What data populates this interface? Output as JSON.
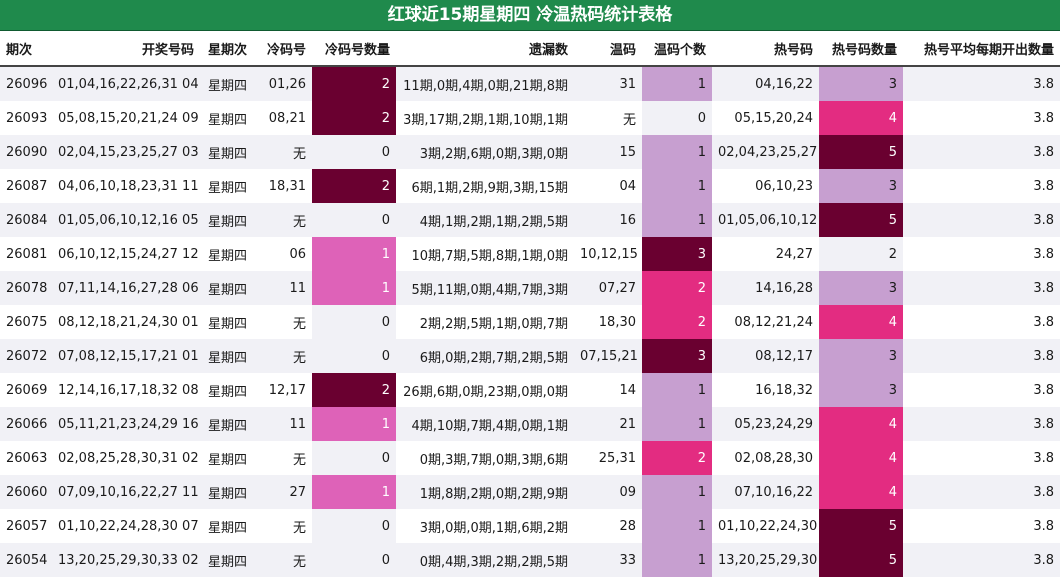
{
  "title": "红球近15期星期四 冷温热码统计表格",
  "headers": [
    "期次",
    "开奖号码",
    "星期次",
    "冷码号",
    "冷码号数量",
    "遗漏数",
    "温码",
    "温码个数",
    "热号码",
    "热号码数量",
    "热号平均每期开出数量"
  ],
  "rows": [
    {
      "period": "26096",
      "numbers": "01,04,16,22,26,31 04",
      "weekday": "星期四",
      "cold": "01,26",
      "cold_count": "2",
      "missing": "11期,0期,4期,0期,21期,8期",
      "warm": "31",
      "warm_count": "1",
      "hot": "04,16,22",
      "hot_count": "3",
      "hot_avg": "3.8"
    },
    {
      "period": "26093",
      "numbers": "05,08,15,20,21,24 09",
      "weekday": "星期四",
      "cold": "08,21",
      "cold_count": "2",
      "missing": "3期,17期,2期,1期,10期,1期",
      "warm": "无",
      "warm_count": "0",
      "hot": "05,15,20,24",
      "hot_count": "4",
      "hot_avg": "3.8"
    },
    {
      "period": "26090",
      "numbers": "02,04,15,23,25,27 03",
      "weekday": "星期四",
      "cold": "无",
      "cold_count": "0",
      "missing": "3期,2期,6期,0期,3期,0期",
      "warm": "15",
      "warm_count": "1",
      "hot": "02,04,23,25,27",
      "hot_count": "5",
      "hot_avg": "3.8"
    },
    {
      "period": "26087",
      "numbers": "04,06,10,18,23,31 11",
      "weekday": "星期四",
      "cold": "18,31",
      "cold_count": "2",
      "missing": "6期,1期,2期,9期,3期,15期",
      "warm": "04",
      "warm_count": "1",
      "hot": "06,10,23",
      "hot_count": "3",
      "hot_avg": "3.8"
    },
    {
      "period": "26084",
      "numbers": "01,05,06,10,12,16 05",
      "weekday": "星期四",
      "cold": "无",
      "cold_count": "0",
      "missing": "4期,1期,2期,1期,2期,5期",
      "warm": "16",
      "warm_count": "1",
      "hot": "01,05,06,10,12",
      "hot_count": "5",
      "hot_avg": "3.8"
    },
    {
      "period": "26081",
      "numbers": "06,10,12,15,24,27 12",
      "weekday": "星期四",
      "cold": "06",
      "cold_count": "1",
      "missing": "10期,7期,5期,8期,1期,0期",
      "warm": "10,12,15",
      "warm_count": "3",
      "hot": "24,27",
      "hot_count": "2",
      "hot_avg": "3.8"
    },
    {
      "period": "26078",
      "numbers": "07,11,14,16,27,28 06",
      "weekday": "星期四",
      "cold": "11",
      "cold_count": "1",
      "missing": "5期,11期,0期,4期,7期,3期",
      "warm": "07,27",
      "warm_count": "2",
      "hot": "14,16,28",
      "hot_count": "3",
      "hot_avg": "3.8"
    },
    {
      "period": "26075",
      "numbers": "08,12,18,21,24,30 01",
      "weekday": "星期四",
      "cold": "无",
      "cold_count": "0",
      "missing": "2期,2期,5期,1期,0期,7期",
      "warm": "18,30",
      "warm_count": "2",
      "hot": "08,12,21,24",
      "hot_count": "4",
      "hot_avg": "3.8"
    },
    {
      "period": "26072",
      "numbers": "07,08,12,15,17,21 01",
      "weekday": "星期四",
      "cold": "无",
      "cold_count": "0",
      "missing": "6期,0期,2期,7期,2期,5期",
      "warm": "07,15,21",
      "warm_count": "3",
      "hot": "08,12,17",
      "hot_count": "3",
      "hot_avg": "3.8"
    },
    {
      "period": "26069",
      "numbers": "12,14,16,17,18,32 08",
      "weekday": "星期四",
      "cold": "12,17",
      "cold_count": "2",
      "missing": "26期,6期,0期,23期,0期,0期",
      "warm": "14",
      "warm_count": "1",
      "hot": "16,18,32",
      "hot_count": "3",
      "hot_avg": "3.8"
    },
    {
      "period": "26066",
      "numbers": "05,11,21,23,24,29 16",
      "weekday": "星期四",
      "cold": "11",
      "cold_count": "1",
      "missing": "4期,10期,7期,4期,0期,1期",
      "warm": "21",
      "warm_count": "1",
      "hot": "05,23,24,29",
      "hot_count": "4",
      "hot_avg": "3.8"
    },
    {
      "period": "26063",
      "numbers": "02,08,25,28,30,31 02",
      "weekday": "星期四",
      "cold": "无",
      "cold_count": "0",
      "missing": "0期,3期,7期,0期,3期,6期",
      "warm": "25,31",
      "warm_count": "2",
      "hot": "02,08,28,30",
      "hot_count": "4",
      "hot_avg": "3.8"
    },
    {
      "period": "26060",
      "numbers": "07,09,10,16,22,27 11",
      "weekday": "星期四",
      "cold": "27",
      "cold_count": "1",
      "missing": "1期,8期,2期,0期,2期,9期",
      "warm": "09",
      "warm_count": "1",
      "hot": "07,10,16,22",
      "hot_count": "4",
      "hot_avg": "3.8"
    },
    {
      "period": "26057",
      "numbers": "01,10,22,24,28,30 07",
      "weekday": "星期四",
      "cold": "无",
      "cold_count": "0",
      "missing": "3期,0期,0期,1期,6期,2期",
      "warm": "28",
      "warm_count": "1",
      "hot": "01,10,22,24,30",
      "hot_count": "5",
      "hot_avg": "3.8"
    },
    {
      "period": "26054",
      "numbers": "13,20,25,29,30,33 02",
      "weekday": "星期四",
      "cold": "无",
      "cold_count": "0",
      "missing": "0期,4期,3期,2期,2期,5期",
      "warm": "33",
      "warm_count": "1",
      "hot": "13,20,25,29,30",
      "hot_count": "5",
      "hot_avg": "3.8"
    }
  ]
}
